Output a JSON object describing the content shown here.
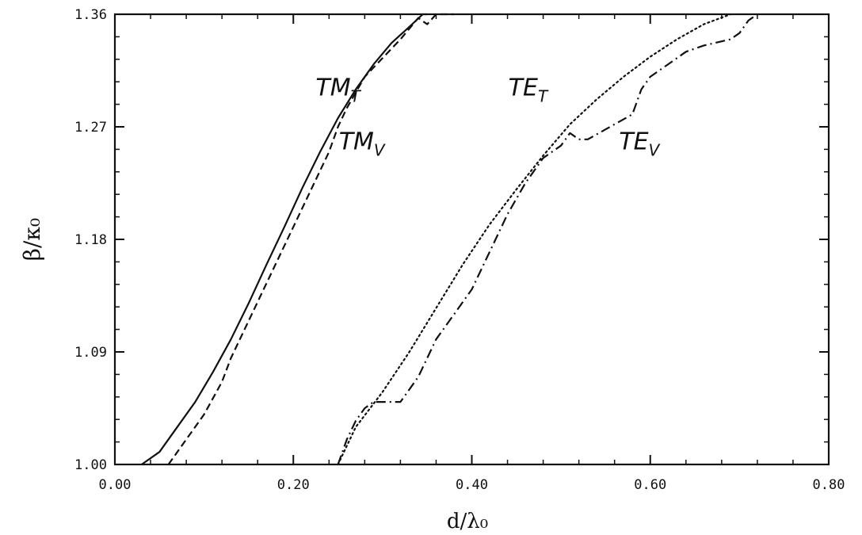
{
  "chart_data": {
    "type": "line",
    "title": "",
    "xlabel": "d/λ₀",
    "ylabel": "β/κ₀",
    "xlim": [
      0.0,
      0.8
    ],
    "ylim": [
      1.0,
      1.36
    ],
    "xticks": [
      "0.00",
      "0.20",
      "0.40",
      "0.60",
      "0.80"
    ],
    "yticks": [
      "1.00",
      "1.09",
      "1.18",
      "1.27",
      "1.36"
    ],
    "grid": false,
    "legend": "none",
    "series": [
      {
        "name": "TM_T",
        "label_main": "TM",
        "label_sub": "T",
        "style": "solid",
        "x": [
          0.03,
          0.05,
          0.07,
          0.09,
          0.11,
          0.13,
          0.15,
          0.17,
          0.19,
          0.21,
          0.23,
          0.25,
          0.27,
          0.29,
          0.31,
          0.33,
          0.345,
          0.35
        ],
        "y": [
          1.0,
          1.01,
          1.03,
          1.05,
          1.074,
          1.1,
          1.129,
          1.16,
          1.19,
          1.221,
          1.25,
          1.277,
          1.3,
          1.32,
          1.337,
          1.35,
          1.36,
          1.36
        ]
      },
      {
        "name": "TM_V",
        "label_main": "TM",
        "label_sub": "V",
        "style": "dashed",
        "x": [
          0.06,
          0.08,
          0.1,
          0.12,
          0.13,
          0.14,
          0.16,
          0.18,
          0.2,
          0.22,
          0.24,
          0.25,
          0.26,
          0.28,
          0.3,
          0.32,
          0.34,
          0.35,
          0.36,
          0.38
        ],
        "y": [
          1.0,
          1.02,
          1.04,
          1.066,
          1.085,
          1.1,
          1.13,
          1.16,
          1.19,
          1.22,
          1.25,
          1.27,
          1.285,
          1.31,
          1.325,
          1.34,
          1.357,
          1.352,
          1.36,
          1.36
        ]
      },
      {
        "name": "TE_T",
        "label_main": "TE",
        "label_sub": "T",
        "style": "dotted",
        "x": [
          0.25,
          0.27,
          0.3,
          0.33,
          0.36,
          0.39,
          0.42,
          0.45,
          0.48,
          0.51,
          0.54,
          0.57,
          0.6,
          0.63,
          0.66,
          0.69
        ],
        "y": [
          1.0,
          1.03,
          1.058,
          1.09,
          1.125,
          1.16,
          1.192,
          1.22,
          1.247,
          1.272,
          1.292,
          1.31,
          1.326,
          1.34,
          1.352,
          1.36
        ]
      },
      {
        "name": "TE_V",
        "label_main": "TE",
        "label_sub": "V",
        "style": "dashdot",
        "x": [
          0.25,
          0.26,
          0.27,
          0.28,
          0.29,
          0.32,
          0.34,
          0.36,
          0.38,
          0.4,
          0.42,
          0.44,
          0.46,
          0.48,
          0.5,
          0.51,
          0.52,
          0.53,
          0.55,
          0.58,
          0.59,
          0.6,
          0.62,
          0.64,
          0.66,
          0.69,
          0.7,
          0.71,
          0.72
        ],
        "y": [
          1.0,
          1.02,
          1.035,
          1.045,
          1.05,
          1.05,
          1.07,
          1.1,
          1.12,
          1.14,
          1.17,
          1.2,
          1.225,
          1.245,
          1.255,
          1.265,
          1.26,
          1.26,
          1.268,
          1.28,
          1.3,
          1.31,
          1.32,
          1.33,
          1.335,
          1.34,
          1.345,
          1.355,
          1.36
        ]
      }
    ]
  }
}
